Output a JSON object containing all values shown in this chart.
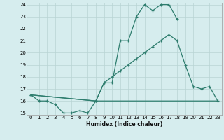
{
  "line1_x": [
    0,
    1,
    2,
    3,
    4,
    5,
    6,
    7,
    8,
    9,
    10,
    11,
    12,
    13,
    14,
    15,
    16,
    17,
    18
  ],
  "line1_y": [
    16.5,
    16.0,
    16.0,
    15.7,
    15.0,
    15.0,
    15.2,
    15.0,
    16.0,
    17.5,
    17.5,
    21.0,
    21.0,
    23.0,
    24.0,
    23.5,
    24.0,
    24.0,
    22.8
  ],
  "line2_x": [
    0,
    8,
    9,
    10,
    11,
    12,
    13,
    14,
    15,
    16,
    17,
    18,
    19,
    20,
    21,
    22,
    23
  ],
  "line2_y": [
    16.5,
    16.0,
    17.5,
    18.0,
    18.5,
    19.0,
    19.5,
    20.0,
    20.5,
    21.0,
    21.5,
    21.0,
    19.0,
    17.2,
    17.0,
    17.2,
    16.0
  ],
  "line3_x": [
    0,
    8,
    9,
    10,
    11,
    12,
    13,
    14,
    15,
    16,
    17,
    18,
    19,
    20,
    21,
    22,
    23
  ],
  "line3_y": [
    16.5,
    16.0,
    16.0,
    16.0,
    16.0,
    16.0,
    16.0,
    16.0,
    16.0,
    16.0,
    16.0,
    16.0,
    16.0,
    16.0,
    16.0,
    16.0,
    16.0
  ],
  "color": "#2e7d6e",
  "bg_color": "#d6edee",
  "grid_color": "#b8d4d4",
  "xlabel": "Humidex (Indice chaleur)",
  "ylim": [
    15,
    24
  ],
  "xlim": [
    -0.5,
    23.5
  ],
  "yticks": [
    15,
    16,
    17,
    18,
    19,
    20,
    21,
    22,
    23,
    24
  ],
  "xticks": [
    0,
    1,
    2,
    3,
    4,
    5,
    6,
    7,
    8,
    9,
    10,
    11,
    12,
    13,
    14,
    15,
    16,
    17,
    18,
    19,
    20,
    21,
    22,
    23
  ]
}
